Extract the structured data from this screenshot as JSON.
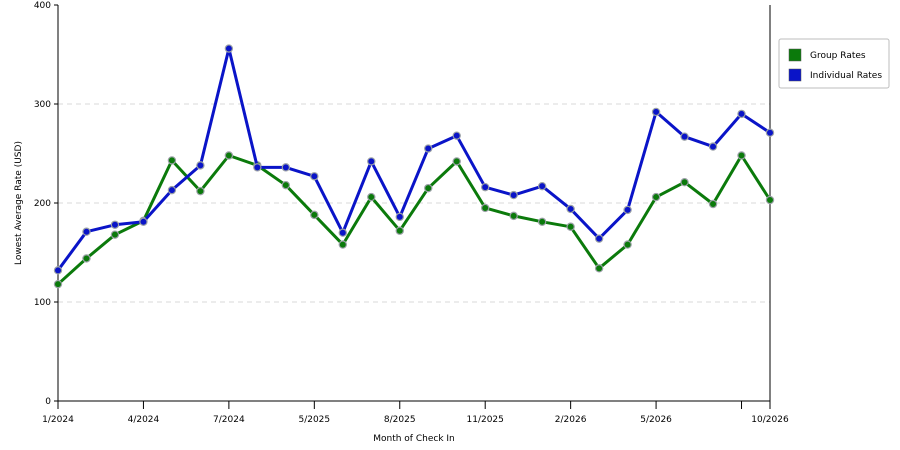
{
  "chart_data": {
    "type": "line",
    "xlabel": "Month of Check In",
    "ylabel": "Lowest Average Rate (USD)",
    "ylim": [
      0,
      400
    ],
    "yticks": [
      0,
      100,
      200,
      300,
      400
    ],
    "grid": "horizontal dashed",
    "legend_position": "right",
    "x_tick_labels": [
      {
        "index": 0,
        "label": "1/2024"
      },
      {
        "index": 3,
        "label": "4/2024"
      },
      {
        "index": 6,
        "label": "7/2024"
      },
      {
        "index": 9,
        "label": "5/2025"
      },
      {
        "index": 12,
        "label": "8/2025"
      },
      {
        "index": 15,
        "label": "11/2025"
      },
      {
        "index": 18,
        "label": "2/2026"
      },
      {
        "index": 21,
        "label": "5/2026"
      },
      {
        "index": 24,
        "label": ""
      },
      {
        "index": 25,
        "label": "10/2026"
      }
    ],
    "series": [
      {
        "name": "Group Rates",
        "color": "#0b7a0b",
        "values": [
          118,
          144,
          168,
          182,
          243,
          212,
          248,
          238,
          218,
          188,
          158,
          206,
          172,
          215,
          242,
          195,
          187,
          181,
          176,
          134,
          158,
          206,
          221,
          199,
          248,
          203
        ]
      },
      {
        "name": "Individual Rates",
        "color": "#0a14c8",
        "values": [
          132,
          171,
          178,
          181,
          213,
          238,
          356,
          236,
          236,
          227,
          170,
          242,
          186,
          255,
          268,
          216,
          208,
          217,
          194,
          164,
          193,
          292,
          267,
          257,
          290,
          271
        ]
      }
    ]
  }
}
